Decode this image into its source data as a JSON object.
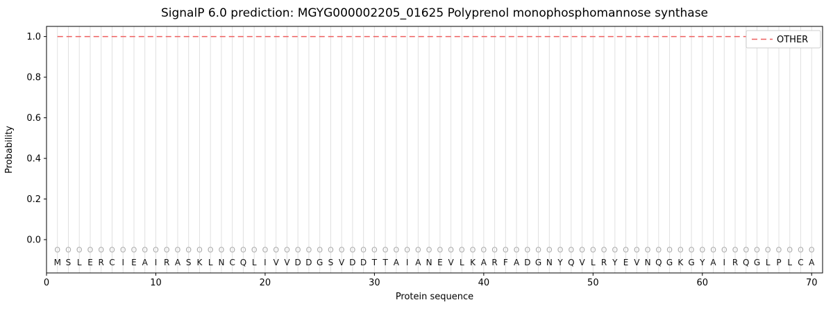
{
  "figure": {
    "background": "#ffffff"
  },
  "chart_data": {
    "type": "line",
    "title": "SignalP 6.0 prediction: MGYG000002205_01625 Polyprenol monophosphomannose synthase",
    "xlabel": "Protein sequence",
    "ylabel": "Probability",
    "xlim": [
      0,
      71
    ],
    "ylim": [
      -0.164,
      1.05
    ],
    "x_ticks": [
      0,
      10,
      20,
      30,
      40,
      50,
      60,
      70
    ],
    "y_ticks": [
      0.0,
      0.2,
      0.4,
      0.6,
      0.8,
      1.0
    ],
    "grid": {
      "vertical_per_position": true,
      "color": "#e0e0e0"
    },
    "axis_color": "#000000",
    "legend": {
      "position": "upper right",
      "entries": [
        {
          "label": "OTHER",
          "color": "#ee5f5f",
          "linestyle": "dashed"
        }
      ]
    },
    "series": [
      {
        "name": "OTHER",
        "color": "#ee5f5f",
        "linestyle": "dashed",
        "y_constant": 1.0,
        "x_start": 1,
        "x_end": 70
      }
    ],
    "sequence": "MSLERCIEAIRASKLNCQLIVVDDGSVDDTTAIANEVLKARFADGNYQVLRYEVNQGKGYAIRQGLPLCA",
    "position_markers": {
      "symbol": "O",
      "y": -0.05,
      "color": "#aaaaaa"
    },
    "sequence_row_y": -0.113
  }
}
